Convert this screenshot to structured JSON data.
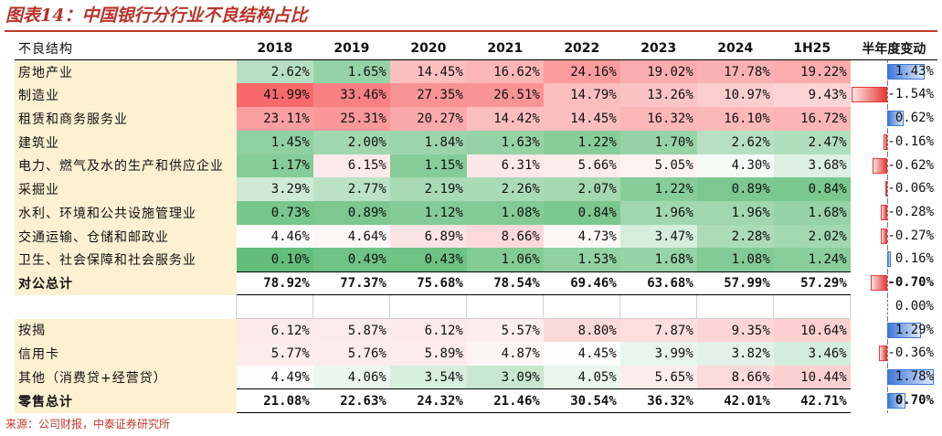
{
  "title": "图表14：中国银行分行业不良结构占比",
  "source": "来源：公司财报，中泰证券研究所",
  "chart_data": {
    "type": "table",
    "title": "图表14：中国银行分行业不良结构占比",
    "corner_label": "不良结构",
    "columns": [
      "2018",
      "2019",
      "2020",
      "2021",
      "2022",
      "2023",
      "2024",
      "1H25"
    ],
    "change_header": "半年度变动",
    "rows": [
      {
        "name": "房地产业",
        "values": [
          "2.62%",
          "1.65%",
          "14.45%",
          "16.62%",
          "24.16%",
          "19.02%",
          "17.78%",
          "19.22%"
        ],
        "change": "1.43%",
        "change_value": 1.43
      },
      {
        "name": "制造业",
        "values": [
          "41.99%",
          "33.46%",
          "27.35%",
          "26.51%",
          "14.79%",
          "13.26%",
          "10.97%",
          "9.43%"
        ],
        "change": "-1.54%",
        "change_value": -1.54
      },
      {
        "name": "租赁和商务服务业",
        "values": [
          "23.11%",
          "25.31%",
          "20.27%",
          "14.42%",
          "14.45%",
          "16.32%",
          "16.10%",
          "16.72%"
        ],
        "change": "0.62%",
        "change_value": 0.62
      },
      {
        "name": "建筑业",
        "values": [
          "1.45%",
          "2.00%",
          "1.84%",
          "1.63%",
          "1.22%",
          "1.70%",
          "2.62%",
          "2.47%"
        ],
        "change": "-0.16%",
        "change_value": -0.16
      },
      {
        "name": "电力、燃气及水的生产和供应企业",
        "values": [
          "1.17%",
          "6.15%",
          "1.15%",
          "6.31%",
          "5.66%",
          "5.05%",
          "4.30%",
          "3.68%"
        ],
        "change": "-0.62%",
        "change_value": -0.62
      },
      {
        "name": "采掘业",
        "values": [
          "3.29%",
          "2.77%",
          "2.19%",
          "2.26%",
          "2.07%",
          "1.22%",
          "0.89%",
          "0.84%"
        ],
        "change": "-0.06%",
        "change_value": -0.06
      },
      {
        "name": "水利、环境和公共设施管理业",
        "values": [
          "0.73%",
          "0.89%",
          "1.12%",
          "1.08%",
          "0.84%",
          "1.96%",
          "1.96%",
          "1.68%"
        ],
        "change": "-0.28%",
        "change_value": -0.28
      },
      {
        "name": "交通运输、仓储和邮政业",
        "values": [
          "4.46%",
          "4.64%",
          "6.89%",
          "8.66%",
          "4.73%",
          "3.47%",
          "2.28%",
          "2.02%"
        ],
        "change": "-0.27%",
        "change_value": -0.27
      },
      {
        "name": "卫生、社会保障和社会服务业",
        "values": [
          "0.10%",
          "0.49%",
          "0.43%",
          "1.06%",
          "1.53%",
          "1.68%",
          "1.08%",
          "1.24%"
        ],
        "change": "0.16%",
        "change_value": 0.16
      },
      {
        "name": "对公总计",
        "values": [
          "78.92%",
          "77.37%",
          "75.68%",
          "78.54%",
          "69.46%",
          "63.68%",
          "57.99%",
          "57.29%"
        ],
        "change": "-0.70%",
        "change_value": -0.7,
        "total": true
      },
      {
        "name": "",
        "values": [
          "",
          "",
          "",
          "",
          "",
          "",
          "",
          ""
        ],
        "change": "0.00%",
        "change_value": 0.0,
        "gap": true
      },
      {
        "name": "按揭",
        "values": [
          "6.12%",
          "5.87%",
          "6.12%",
          "5.57%",
          "8.80%",
          "7.87%",
          "9.35%",
          "10.64%"
        ],
        "change": "1.29%",
        "change_value": 1.29
      },
      {
        "name": "信用卡",
        "values": [
          "5.77%",
          "5.76%",
          "5.89%",
          "4.87%",
          "4.45%",
          "3.99%",
          "3.82%",
          "3.46%"
        ],
        "change": "-0.36%",
        "change_value": -0.36
      },
      {
        "name": "其他（消费贷+经营贷）",
        "values": [
          "4.49%",
          "4.06%",
          "3.54%",
          "3.09%",
          "4.05%",
          "5.65%",
          "8.66%",
          "10.44%"
        ],
        "change": "1.78%",
        "change_value": 1.78
      },
      {
        "name": "零售总计",
        "values": [
          "21.08%",
          "22.63%",
          "24.32%",
          "21.46%",
          "30.54%",
          "36.32%",
          "42.01%",
          "42.71%"
        ],
        "change": "0.70%",
        "change_value": 0.7,
        "total": true
      }
    ],
    "change_range": [
      -1.6,
      1.8
    ],
    "colors": {
      "high": "#f8696b",
      "mid": "#fdfdfd",
      "low": "#63be7b",
      "pos_bar": "#3c78d8",
      "neg_bar": "#e53935",
      "label_bg": "#fdf1d2",
      "title": "#b8332b"
    }
  }
}
